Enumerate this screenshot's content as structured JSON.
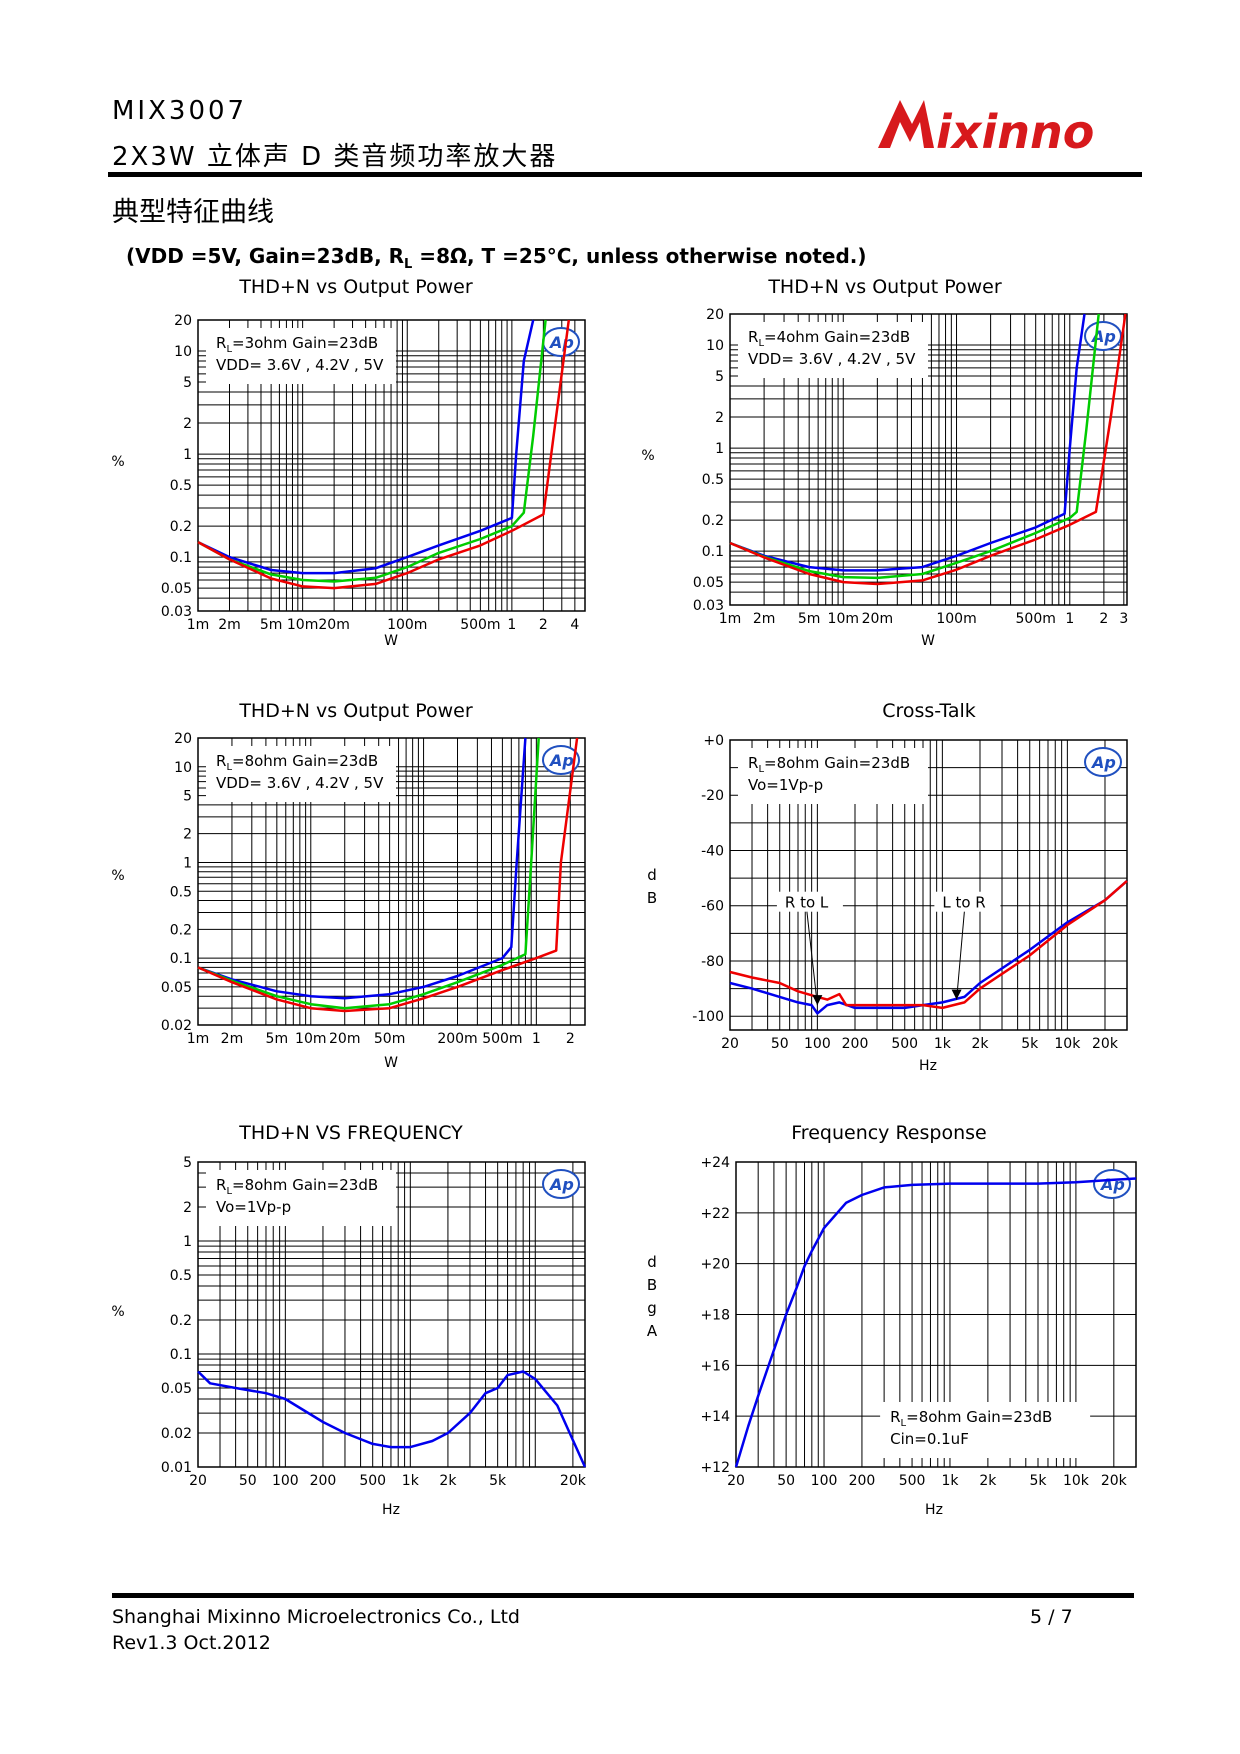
{
  "header": {
    "part": "MIX3007",
    "subtitle": "2X3W 立体声 D 类音频功率放大器",
    "logo_text": "Mixinno",
    "brand_color": "#d7191c"
  },
  "section_title": "典型特征曲线",
  "conditions_pre": "(VDD =5V, Gain=23dB, R",
  "conditions_sub": "L",
  "conditions_post": " =8Ω, T =25°C, unless otherwise noted.)",
  "footer": {
    "company": "Shanghai Mixinno Microelectronics Co., Ltd",
    "revision": "Rev1.3 Oct.2012",
    "page": "5 / 7"
  },
  "chart_data": [
    {
      "type": "line",
      "title": "THD+N vs Output Power",
      "xlabel": "W",
      "ylabel": "%",
      "xscale": "log",
      "yscale": "log",
      "xlim": [
        0.001,
        5
      ],
      "ylim": [
        0.03,
        20
      ],
      "x_ticks": [
        0.001,
        0.002,
        0.005,
        0.01,
        0.02,
        0.1,
        0.5,
        1,
        2,
        4
      ],
      "x_tick_labels": [
        "1m",
        "2m",
        "5m",
        "10m",
        "20m",
        "100m",
        "500m",
        "1",
        "2",
        "4"
      ],
      "y_ticks": [
        20,
        10,
        5,
        2,
        1,
        0.5,
        0.2,
        0.1,
        0.05,
        0.03
      ],
      "y_tick_labels": [
        "20",
        "10",
        "5",
        "2",
        "1",
        "0.5",
        "0.2",
        "0.1",
        "0.05",
        "0.03"
      ],
      "annotation": [
        "R|L|=3ohm Gain=23dB",
        "VDD= 3.6V , 4.2V , 5V"
      ],
      "series": [
        {
          "color": "#0000ee",
          "x": [
            0.001,
            0.002,
            0.005,
            0.01,
            0.02,
            0.05,
            0.1,
            0.2,
            0.5,
            1.0,
            1.1,
            1.3,
            1.6
          ],
          "y": [
            0.14,
            0.1,
            0.075,
            0.07,
            0.07,
            0.078,
            0.1,
            0.13,
            0.18,
            0.24,
            1.0,
            8,
            20
          ]
        },
        {
          "color": "#00cc00",
          "x": [
            0.001,
            0.002,
            0.005,
            0.01,
            0.02,
            0.05,
            0.1,
            0.2,
            0.5,
            1.0,
            1.3,
            1.6,
            2.1
          ],
          "y": [
            0.14,
            0.095,
            0.068,
            0.06,
            0.058,
            0.063,
            0.08,
            0.11,
            0.15,
            0.2,
            0.27,
            1.5,
            20
          ]
        },
        {
          "color": "#ee0000",
          "x": [
            0.001,
            0.002,
            0.005,
            0.01,
            0.02,
            0.05,
            0.1,
            0.2,
            0.5,
            1.0,
            2.0,
            2.6,
            3.5
          ],
          "y": [
            0.14,
            0.095,
            0.062,
            0.052,
            0.05,
            0.055,
            0.07,
            0.095,
            0.13,
            0.18,
            0.26,
            2,
            20
          ]
        }
      ]
    },
    {
      "type": "line",
      "title": "THD+N vs Output Power",
      "xlabel": "W",
      "ylabel": "%",
      "xscale": "log",
      "yscale": "log",
      "xlim": [
        0.001,
        3.2
      ],
      "ylim": [
        0.03,
        20
      ],
      "x_ticks": [
        0.001,
        0.002,
        0.005,
        0.01,
        0.02,
        0.1,
        0.5,
        1,
        2,
        3
      ],
      "x_tick_labels": [
        "1m",
        "2m",
        "5m",
        "10m",
        "20m",
        "100m",
        "500m",
        "1",
        "2",
        "3"
      ],
      "y_ticks": [
        20,
        10,
        5,
        2,
        1,
        0.5,
        0.2,
        0.1,
        0.05,
        0.03
      ],
      "y_tick_labels": [
        "20",
        "10",
        "5",
        "2",
        "1",
        "0.5",
        "0.2",
        "0.1",
        "0.05",
        "0.03"
      ],
      "annotation": [
        "R|L|=4ohm Gain=23dB",
        "VDD= 3.6V , 4.2V , 5V"
      ],
      "series": [
        {
          "color": "#0000ee",
          "x": [
            0.001,
            0.002,
            0.005,
            0.01,
            0.02,
            0.05,
            0.1,
            0.2,
            0.5,
            0.9,
            1.0,
            1.15,
            1.35
          ],
          "y": [
            0.12,
            0.09,
            0.07,
            0.065,
            0.065,
            0.07,
            0.09,
            0.12,
            0.17,
            0.23,
            1.0,
            6,
            20
          ]
        },
        {
          "color": "#00cc00",
          "x": [
            0.001,
            0.002,
            0.005,
            0.01,
            0.02,
            0.05,
            0.1,
            0.2,
            0.5,
            1.0,
            1.15,
            1.4,
            1.8
          ],
          "y": [
            0.12,
            0.088,
            0.064,
            0.056,
            0.055,
            0.06,
            0.077,
            0.1,
            0.15,
            0.21,
            0.24,
            1.5,
            20
          ]
        },
        {
          "color": "#ee0000",
          "x": [
            0.001,
            0.002,
            0.005,
            0.01,
            0.02,
            0.05,
            0.1,
            0.2,
            0.5,
            1.0,
            1.7,
            2.3,
            3.1
          ],
          "y": [
            0.12,
            0.087,
            0.06,
            0.05,
            0.048,
            0.052,
            0.066,
            0.09,
            0.13,
            0.18,
            0.24,
            2,
            20
          ]
        }
      ]
    },
    {
      "type": "line",
      "title": "THD+N vs Output Power",
      "xlabel": "W",
      "ylabel": "%",
      "xscale": "log",
      "yscale": "log",
      "xlim": [
        0.001,
        2.7
      ],
      "ylim": [
        0.02,
        20
      ],
      "x_ticks": [
        0.001,
        0.002,
        0.005,
        0.01,
        0.02,
        0.05,
        0.2,
        0.5,
        1,
        2
      ],
      "x_tick_labels": [
        "1m",
        "2m",
        "5m",
        "10m",
        "20m",
        "50m",
        "200m",
        "500m",
        "1",
        "2"
      ],
      "y_ticks": [
        20,
        10,
        5,
        2,
        1,
        0.5,
        0.2,
        0.1,
        0.05,
        0.02
      ],
      "y_tick_labels": [
        "20",
        "10",
        "5",
        "2",
        "1",
        "0.5",
        "0.2",
        "0.1",
        "0.05",
        "0.02"
      ],
      "annotation": [
        "R|L|=8ohm Gain=23dB",
        "VDD= 3.6V , 4.2V , 5V"
      ],
      "series": [
        {
          "color": "#0000ee",
          "x": [
            0.001,
            0.002,
            0.005,
            0.01,
            0.02,
            0.05,
            0.1,
            0.2,
            0.5,
            0.6,
            0.67,
            0.8
          ],
          "y": [
            0.08,
            0.06,
            0.045,
            0.04,
            0.038,
            0.042,
            0.05,
            0.065,
            0.1,
            0.13,
            1.0,
            20
          ]
        },
        {
          "color": "#00cc00",
          "x": [
            0.001,
            0.002,
            0.005,
            0.01,
            0.02,
            0.05,
            0.1,
            0.2,
            0.5,
            0.8,
            0.9,
            1.05
          ],
          "y": [
            0.08,
            0.058,
            0.04,
            0.033,
            0.03,
            0.033,
            0.042,
            0.056,
            0.085,
            0.11,
            1.0,
            20
          ]
        },
        {
          "color": "#ee0000",
          "x": [
            0.001,
            0.002,
            0.005,
            0.01,
            0.02,
            0.05,
            0.1,
            0.2,
            0.5,
            1.0,
            1.5,
            1.65,
            2.3
          ],
          "y": [
            0.08,
            0.056,
            0.037,
            0.03,
            0.028,
            0.03,
            0.038,
            0.05,
            0.075,
            0.1,
            0.12,
            1.0,
            20
          ]
        }
      ]
    },
    {
      "type": "line",
      "title": "Cross-Talk",
      "xlabel": "Hz",
      "ylabel": "dB",
      "xscale": "log",
      "yscale": "linear",
      "xlim": [
        20,
        30000
      ],
      "ylim": [
        -105,
        0
      ],
      "x_ticks": [
        20,
        50,
        100,
        200,
        500,
        1000,
        2000,
        5000,
        10000,
        20000
      ],
      "x_tick_labels": [
        "20",
        "50",
        "100",
        "200",
        "500",
        "1k",
        "2k",
        "5k",
        "10k",
        "20k"
      ],
      "y_ticks": [
        0,
        -20,
        -40,
        -60,
        -80,
        -100
      ],
      "y_tick_labels": [
        "+0",
        "-20",
        "-40",
        "-60",
        "-80",
        "-100"
      ],
      "annotation": [
        "R|L|=8ohm Gain=23dB",
        "Vo=1Vp-p"
      ],
      "labels": [
        {
          "text": "R to L",
          "x": 55,
          "y": -60,
          "arrow_to": [
            100,
            -96
          ]
        },
        {
          "text": "L to R",
          "x": 1000,
          "y": -60,
          "arrow_to": [
            1300,
            -94
          ]
        }
      ],
      "series": [
        {
          "name": "R to L",
          "color": "#0000ee",
          "x": [
            20,
            30,
            50,
            70,
            90,
            100,
            120,
            150,
            200,
            300,
            500,
            700,
            1000,
            1500,
            2000,
            5000,
            10000,
            20000,
            30000
          ],
          "y": [
            -88,
            -90,
            -93,
            -95,
            -96,
            -99,
            -96,
            -95,
            -97,
            -97,
            -97,
            -96,
            -95,
            -93,
            -88,
            -76,
            -66,
            -58,
            -51
          ]
        },
        {
          "name": "L to R",
          "color": "#ee0000",
          "x": [
            20,
            30,
            50,
            70,
            100,
            120,
            150,
            170,
            200,
            300,
            500,
            700,
            1000,
            1500,
            2000,
            5000,
            10000,
            20000,
            30000
          ],
          "y": [
            -84,
            -86,
            -88,
            -91,
            -93,
            -94,
            -92,
            -96,
            -96,
            -96,
            -96,
            -96,
            -97,
            -95,
            -90,
            -78,
            -67,
            -58,
            -51
          ]
        }
      ]
    },
    {
      "type": "line",
      "title": "THD+N VS FREQUENCY",
      "xlabel": "Hz",
      "ylabel": "%",
      "xscale": "log",
      "yscale": "log",
      "xlim": [
        20,
        25000
      ],
      "ylim": [
        0.01,
        5
      ],
      "x_ticks": [
        20,
        50,
        100,
        200,
        500,
        1000,
        2000,
        5000,
        20000
      ],
      "x_tick_labels": [
        "20",
        "50",
        "100",
        "200",
        "500",
        "1k",
        "2k",
        "5k",
        "20k"
      ],
      "y_ticks": [
        5,
        2,
        1,
        0.5,
        0.2,
        0.1,
        0.05,
        0.02,
        0.01
      ],
      "y_tick_labels": [
        "5",
        "2",
        "1",
        "0.5",
        "0.2",
        "0.1",
        "0.05",
        "0.02",
        "0.01"
      ],
      "annotation": [
        "R|L|=8ohm Gain=23dB",
        "Vo=1Vp-p"
      ],
      "series": [
        {
          "color": "#0000ee",
          "x": [
            20,
            25,
            40,
            70,
            100,
            200,
            300,
            500,
            700,
            1000,
            1500,
            2000,
            3000,
            4000,
            5000,
            6000,
            8000,
            10000,
            15000,
            25000
          ],
          "y": [
            0.07,
            0.055,
            0.05,
            0.045,
            0.04,
            0.025,
            0.02,
            0.016,
            0.015,
            0.015,
            0.017,
            0.02,
            0.03,
            0.045,
            0.05,
            0.065,
            0.07,
            0.06,
            0.035,
            0.01
          ]
        }
      ]
    },
    {
      "type": "line",
      "title": "Frequency Response",
      "xlabel": "Hz",
      "ylabel": "dBgA",
      "xscale": "log",
      "yscale": "linear",
      "xlim": [
        20,
        30000
      ],
      "ylim": [
        12,
        24
      ],
      "x_ticks": [
        20,
        50,
        100,
        200,
        500,
        1000,
        2000,
        5000,
        10000,
        20000
      ],
      "x_tick_labels": [
        "20",
        "50",
        "100",
        "200",
        "500",
        "1k",
        "2k",
        "5k",
        "10k",
        "20k"
      ],
      "y_ticks": [
        24,
        22,
        20,
        18,
        16,
        14,
        12
      ],
      "y_tick_labels": [
        "+24",
        "+22",
        "+20",
        "+18",
        "+16",
        "+14",
        "+12"
      ],
      "annotation": [
        "R|L|=8ohm Gain=23dB",
        "Cin=0.1uF"
      ],
      "series": [
        {
          "color": "#0000ee",
          "x": [
            20,
            25,
            30,
            40,
            50,
            60,
            70,
            80,
            100,
            150,
            200,
            300,
            500,
            1000,
            2000,
            5000,
            10000,
            20000,
            30000
          ],
          "y": [
            12,
            13.6,
            14.8,
            16.6,
            18.0,
            19.0,
            19.9,
            20.5,
            21.4,
            22.4,
            22.7,
            23.0,
            23.1,
            23.15,
            23.15,
            23.15,
            23.2,
            23.3,
            23.35
          ]
        }
      ]
    }
  ]
}
